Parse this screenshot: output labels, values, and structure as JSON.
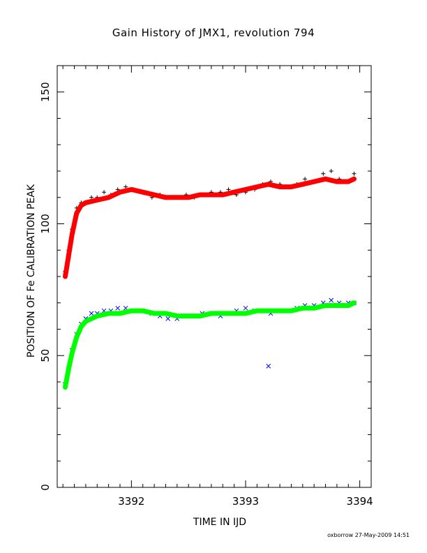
{
  "chart_data": {
    "type": "scatter",
    "title": "Gain History of JMX1, revolution 794",
    "xlabel": "TIME IN IJD",
    "ylabel": "POSITION OF Fe CALIBRATION PEAK",
    "xlim": [
      3391.35,
      3394.1
    ],
    "ylim": [
      0,
      160
    ],
    "xticks": [
      "3392",
      "3393",
      "3394"
    ],
    "yticks": [
      "0",
      "50",
      "100",
      "150"
    ],
    "grid": false,
    "legend": "none",
    "credit": "oxborrow 27-May-2009 14:51",
    "series": [
      {
        "marker": "plus",
        "color": "#000000",
        "x": [
          3391.42,
          3391.45,
          3391.48,
          3391.52,
          3391.56,
          3391.6,
          3391.65,
          3391.7,
          3391.76,
          3391.82,
          3391.88,
          3391.95,
          3392.02,
          3392.1,
          3392.18,
          3392.25,
          3392.32,
          3392.4,
          3392.48,
          3392.55,
          3392.62,
          3392.7,
          3392.78,
          3392.85,
          3392.92,
          3393.0,
          3393.08,
          3393.15,
          3393.22,
          3393.3,
          3393.38,
          3393.45,
          3393.52,
          3393.6,
          3393.68,
          3393.75,
          3393.82,
          3393.9,
          3393.95
        ],
        "y": [
          82,
          90,
          98,
          106,
          108,
          108,
          110,
          110,
          112,
          111,
          113,
          114,
          113,
          112,
          110,
          111,
          110,
          110,
          111,
          110,
          111,
          112,
          112,
          113,
          111,
          112,
          113,
          115,
          116,
          115,
          114,
          115,
          117,
          116,
          119,
          120,
          117,
          116,
          119
        ]
      },
      {
        "marker": "line",
        "color": "#ff0000",
        "x": [
          3391.42,
          3391.45,
          3391.48,
          3391.52,
          3391.56,
          3391.6,
          3391.7,
          3391.8,
          3391.9,
          3392.0,
          3392.1,
          3392.2,
          3392.3,
          3392.4,
          3392.5,
          3392.6,
          3392.7,
          3392.8,
          3392.9,
          3393.0,
          3393.1,
          3393.2,
          3393.3,
          3393.4,
          3393.5,
          3393.6,
          3393.7,
          3393.8,
          3393.9,
          3393.95
        ],
        "y": [
          80,
          88,
          96,
          104,
          107,
          108,
          109,
          110,
          112,
          113,
          112,
          111,
          110,
          110,
          110,
          111,
          111,
          111,
          112,
          113,
          114,
          115,
          114,
          114,
          115,
          116,
          117,
          116,
          116,
          117
        ]
      },
      {
        "marker": "cross",
        "color": "#0000ff",
        "x": [
          3391.42,
          3391.45,
          3391.48,
          3391.52,
          3391.56,
          3391.6,
          3391.65,
          3391.7,
          3391.76,
          3391.82,
          3391.88,
          3391.95,
          3392.02,
          3392.1,
          3392.18,
          3392.25,
          3392.32,
          3392.4,
          3392.48,
          3392.55,
          3392.62,
          3392.7,
          3392.78,
          3392.85,
          3392.92,
          3393.0,
          3393.08,
          3393.15,
          3393.2,
          3393.22,
          3393.3,
          3393.38,
          3393.45,
          3393.52,
          3393.6,
          3393.68,
          3393.75,
          3393.82,
          3393.9,
          3393.95
        ],
        "y": [
          39,
          45,
          52,
          58,
          62,
          64,
          66,
          66,
          67,
          67,
          68,
          68,
          67,
          67,
          66,
          65,
          64,
          64,
          65,
          65,
          66,
          66,
          65,
          66,
          67,
          68,
          67,
          67,
          46,
          66,
          67,
          67,
          68,
          69,
          69,
          70,
          71,
          70,
          70,
          70
        ]
      },
      {
        "marker": "line",
        "color": "#00ff00",
        "x": [
          3391.42,
          3391.45,
          3391.48,
          3391.52,
          3391.56,
          3391.6,
          3391.7,
          3391.8,
          3391.9,
          3392.0,
          3392.1,
          3392.2,
          3392.3,
          3392.4,
          3392.5,
          3392.6,
          3392.7,
          3392.8,
          3392.9,
          3393.0,
          3393.1,
          3393.2,
          3393.3,
          3393.4,
          3393.5,
          3393.6,
          3393.7,
          3393.8,
          3393.9,
          3393.95
        ],
        "y": [
          38,
          45,
          51,
          57,
          61,
          63,
          65,
          66,
          66,
          67,
          67,
          66,
          66,
          65,
          65,
          65,
          66,
          66,
          66,
          66,
          67,
          67,
          67,
          67,
          68,
          68,
          69,
          69,
          69,
          70
        ]
      }
    ]
  }
}
